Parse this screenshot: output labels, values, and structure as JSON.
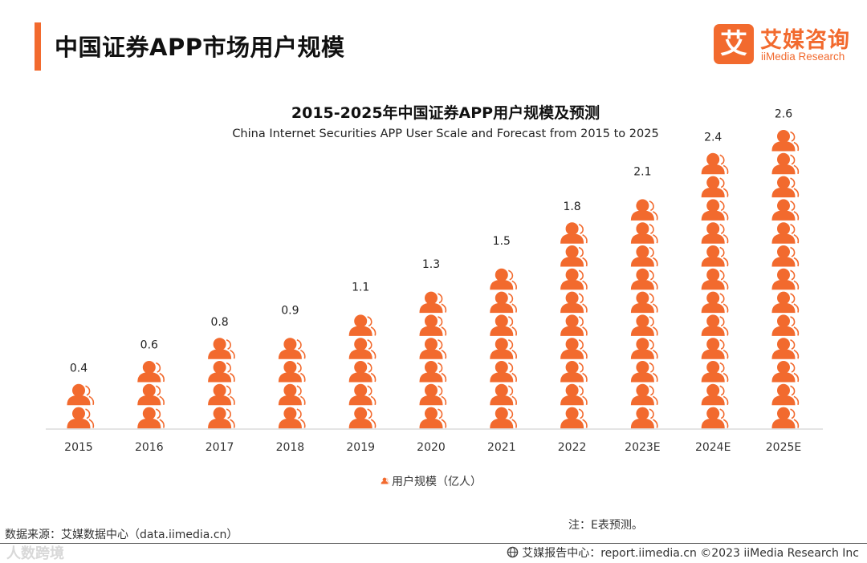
{
  "header": {
    "page_title": "中国证券APP市场用户规模",
    "logo_mark": "艾",
    "logo_cn": "艾媒咨询",
    "logo_en": "iiMedia Research"
  },
  "chart_data": {
    "type": "bar",
    "title": "2015-2025年中国证券APP用户规模及预测",
    "subtitle": "China Internet Securities APP User Scale and Forecast from 2015 to 2025",
    "categories": [
      "2015",
      "2016",
      "2017",
      "2018",
      "2019",
      "2020",
      "2021",
      "2022",
      "2023E",
      "2024E",
      "2025E"
    ],
    "series": [
      {
        "name": "用户规模（亿人）",
        "values": [
          0.4,
          0.6,
          0.8,
          0.9,
          1.1,
          1.3,
          1.5,
          1.8,
          2.1,
          2.4,
          2.6
        ],
        "color": "#f26a2e"
      }
    ],
    "value_labels": [
      "0.4",
      "0.6",
      "0.8",
      "0.9",
      "1.1",
      "1.3",
      "1.5",
      "1.8",
      "2.1",
      "2.4",
      "2.6"
    ],
    "icon_unit": 0.2,
    "icon": "person-icon",
    "legend": "bottom-center",
    "grid": false
  },
  "note": "注：E表预测。",
  "source": "数据来源：艾媒数据中心（data.iimedia.cn）",
  "watermark": "人数跨境",
  "footer": {
    "text": "艾媒报告中心：report.iimedia.cn   ©2023  iiMedia Research  Inc",
    "icon": "globe-icon"
  }
}
